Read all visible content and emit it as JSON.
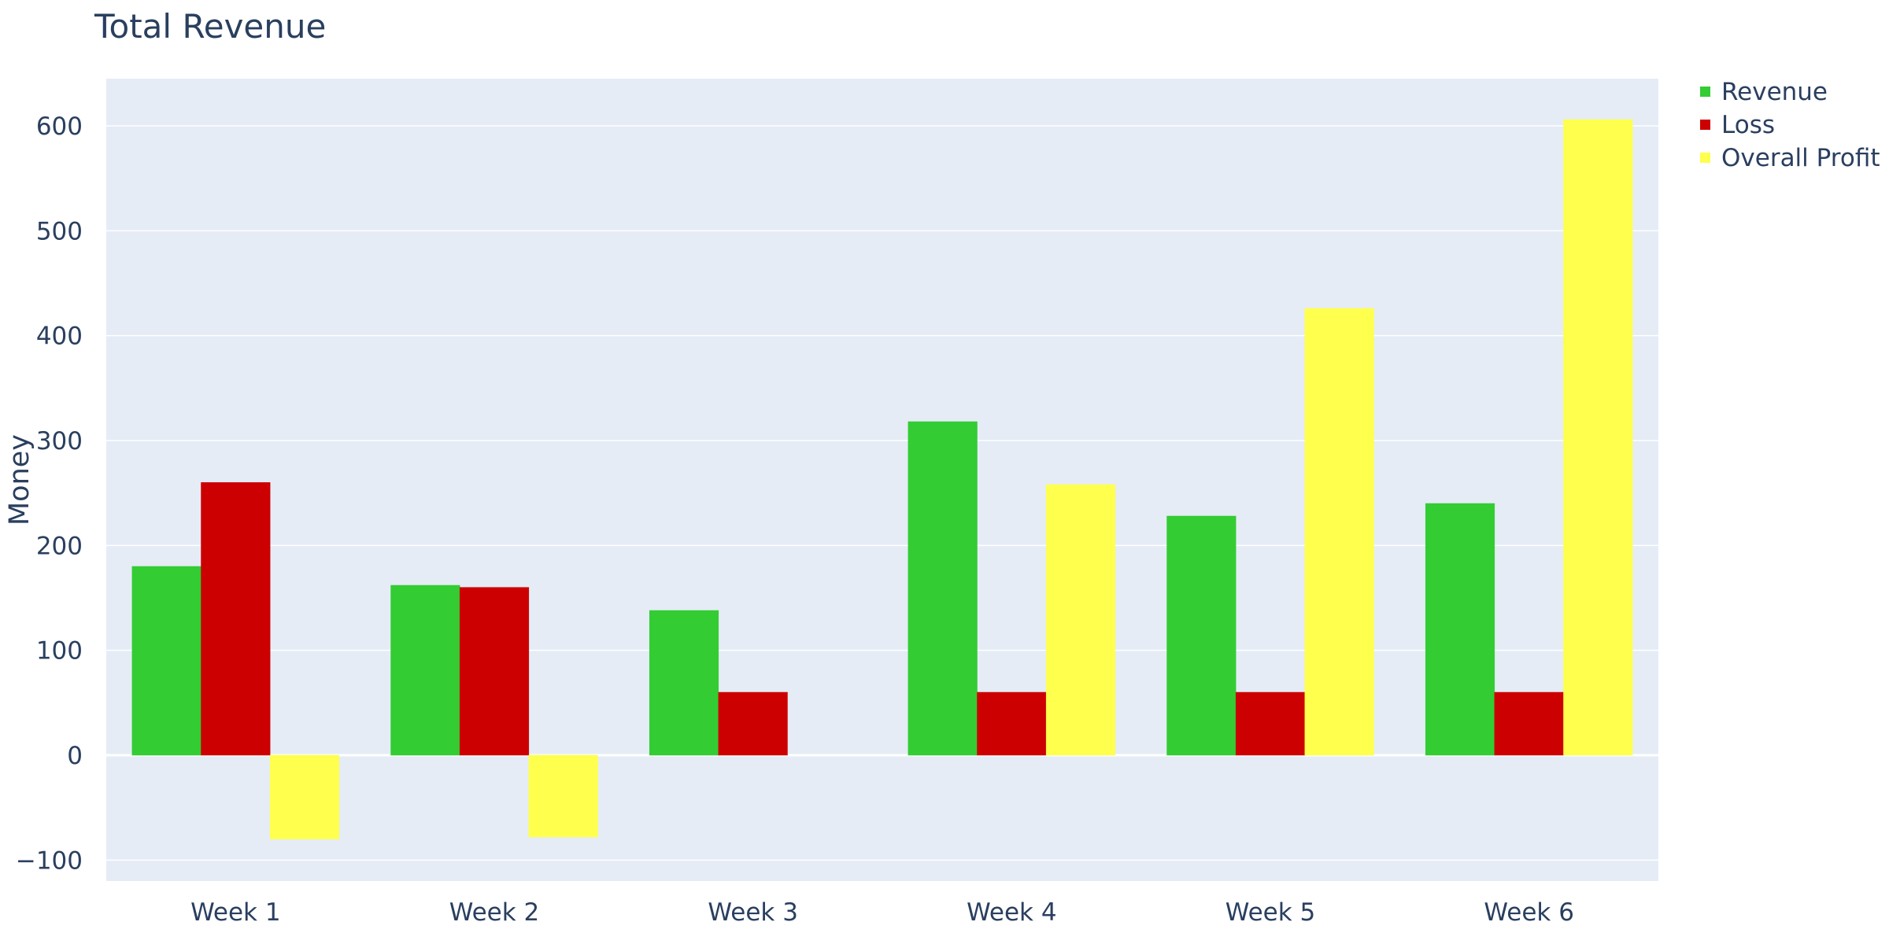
{
  "chart_data": {
    "type": "bar",
    "title": "Total Revenue",
    "xlabel": "",
    "ylabel": "Money",
    "categories": [
      "Week 1",
      "Week 2",
      "Week 3",
      "Week 4",
      "Week 5",
      "Week 6"
    ],
    "series": [
      {
        "name": "Revenue",
        "color": "#33cc33",
        "values": [
          180,
          162,
          138,
          318,
          228,
          240
        ]
      },
      {
        "name": "Loss",
        "color": "#cc0000",
        "values": [
          260,
          160,
          60,
          60,
          60,
          60
        ]
      },
      {
        "name": "Overall Profit",
        "color": "#ffff4d",
        "values": [
          -80,
          -78,
          0,
          258,
          426,
          606
        ]
      }
    ],
    "ylim": [
      -120,
      645
    ],
    "yticks": [
      -100,
      0,
      100,
      200,
      300,
      400,
      500,
      600
    ],
    "ytick_labels": [
      "−100",
      "0",
      "100",
      "200",
      "300",
      "400",
      "500",
      "600"
    ],
    "grid": true,
    "legend_position": "top-right",
    "plot_background": "#e5ecf6",
    "text_color": "#2a3f5f"
  }
}
